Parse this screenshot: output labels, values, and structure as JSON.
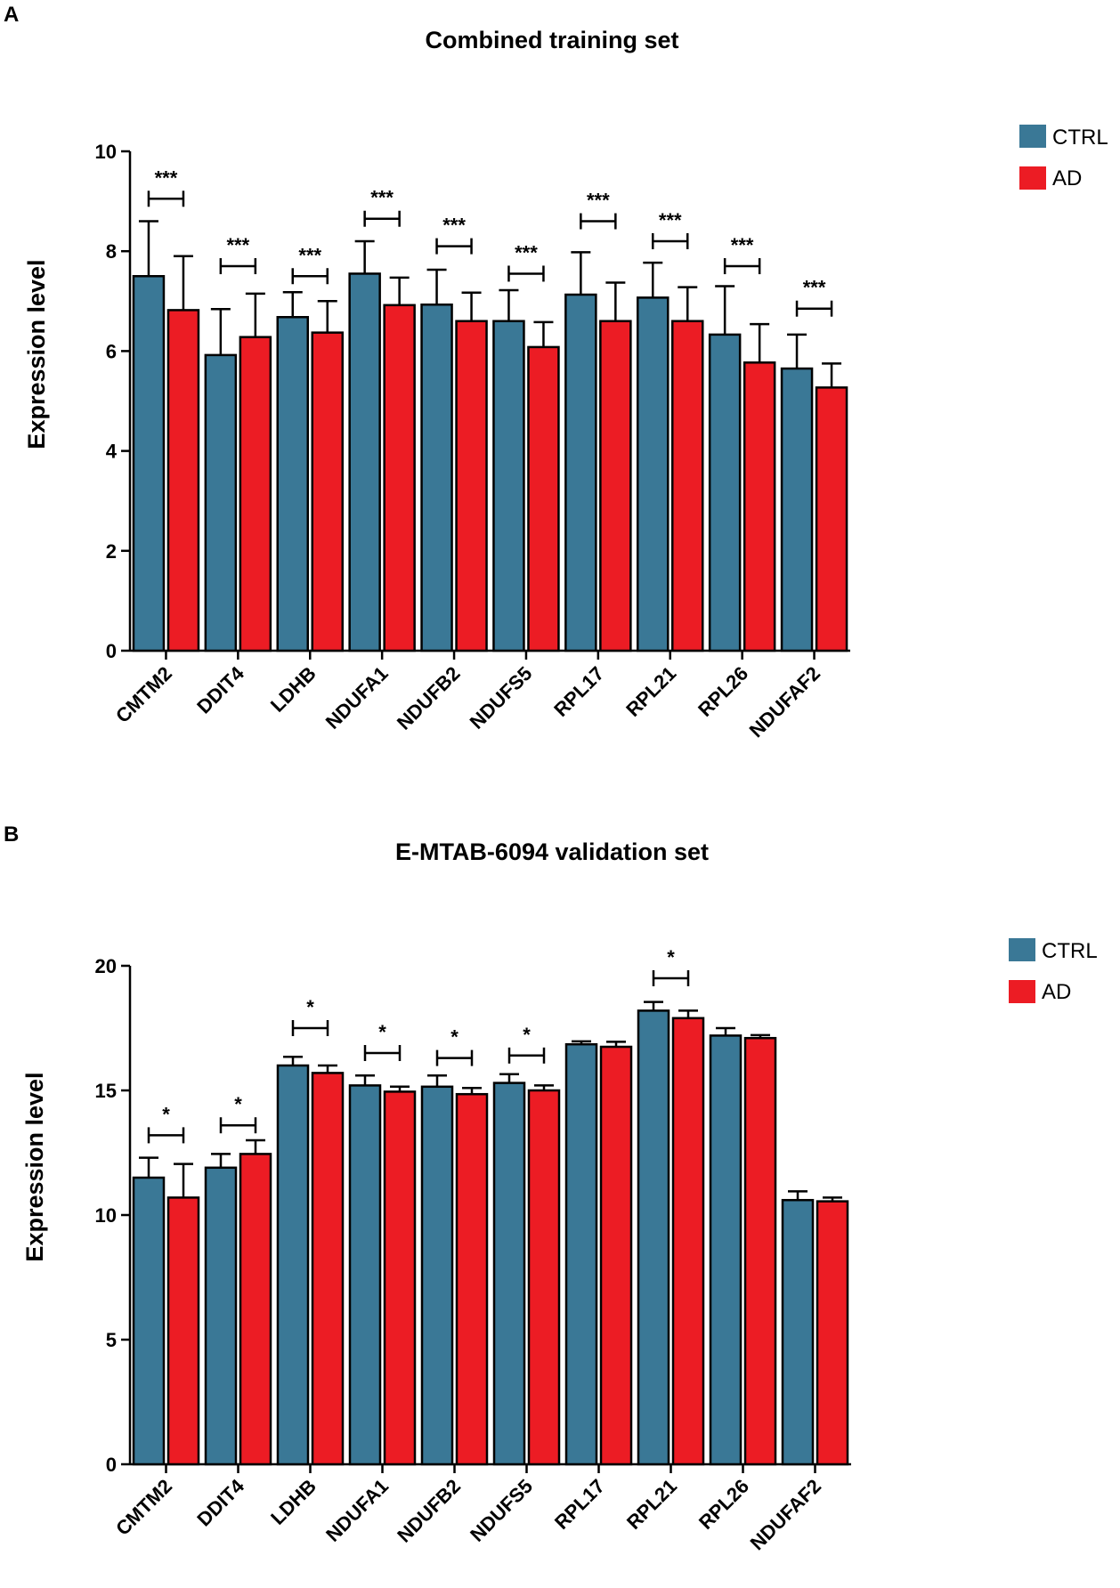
{
  "colors": {
    "ctrl": "#3a7896",
    "ad": "#ec1c24",
    "axis": "#000000"
  },
  "chart_data": [
    {
      "panel": "A",
      "type": "bar",
      "title": "Combined training set",
      "xlabel": "",
      "ylabel": "Expression level",
      "ylim": [
        0,
        10
      ],
      "yticks": [
        0,
        2,
        4,
        6,
        8,
        10
      ],
      "legend": [
        "CTRL",
        "AD"
      ],
      "legend_position": "top-right",
      "categories": [
        "CMTM2",
        "DDIT4",
        "LDHB",
        "NDUFA1",
        "NDUFB2",
        "NDUFS5",
        "RPL17",
        "RPL21",
        "RPL26",
        "NDUFAF2"
      ],
      "series": [
        {
          "name": "CTRL",
          "values": [
            7.5,
            5.92,
            6.68,
            7.55,
            6.93,
            6.6,
            7.13,
            7.07,
            6.33,
            5.65
          ],
          "errors": [
            1.1,
            0.92,
            0.5,
            0.65,
            0.7,
            0.62,
            0.85,
            0.7,
            0.97,
            0.68
          ]
        },
        {
          "name": "AD",
          "values": [
            6.82,
            6.28,
            6.37,
            6.92,
            6.6,
            6.08,
            6.6,
            6.6,
            5.77,
            5.27
          ],
          "errors": [
            1.08,
            0.87,
            0.63,
            0.55,
            0.57,
            0.5,
            0.77,
            0.68,
            0.77,
            0.48
          ]
        }
      ],
      "significance": [
        "***",
        "***",
        "***",
        "***",
        "***",
        "***",
        "***",
        "***",
        "***",
        "***"
      ],
      "significance_bracket_y": [
        9.05,
        7.7,
        7.5,
        8.65,
        8.1,
        7.55,
        8.6,
        8.2,
        7.7,
        6.85
      ]
    },
    {
      "panel": "B",
      "type": "bar",
      "title": "E-MTAB-6094 validation set",
      "xlabel": "",
      "ylabel": "Expression level",
      "ylim": [
        0,
        20
      ],
      "yticks": [
        0,
        5,
        10,
        15,
        20
      ],
      "legend": [
        "CTRL",
        "AD"
      ],
      "legend_position": "top-right",
      "categories": [
        "CMTM2",
        "DDIT4",
        "LDHB",
        "NDUFA1",
        "NDUFB2",
        "NDUFS5",
        "RPL17",
        "RPL21",
        "RPL26",
        "NDUFAF2"
      ],
      "series": [
        {
          "name": "CTRL",
          "values": [
            11.5,
            11.9,
            16.0,
            15.2,
            15.15,
            15.3,
            16.85,
            18.2,
            17.2,
            10.6
          ],
          "errors": [
            0.8,
            0.55,
            0.35,
            0.4,
            0.45,
            0.35,
            0.12,
            0.35,
            0.3,
            0.35
          ]
        },
        {
          "name": "AD",
          "values": [
            10.7,
            12.45,
            15.7,
            14.95,
            14.85,
            15.0,
            16.75,
            17.9,
            17.1,
            10.55
          ],
          "errors": [
            1.35,
            0.55,
            0.3,
            0.2,
            0.25,
            0.2,
            0.2,
            0.3,
            0.12,
            0.15
          ]
        }
      ],
      "significance": [
        "*",
        "*",
        "*",
        "*",
        "*",
        "*",
        "",
        "*",
        "",
        ""
      ],
      "significance_bracket_y": [
        13.2,
        13.6,
        17.5,
        16.5,
        16.3,
        16.4,
        null,
        19.5,
        null,
        null
      ]
    }
  ]
}
